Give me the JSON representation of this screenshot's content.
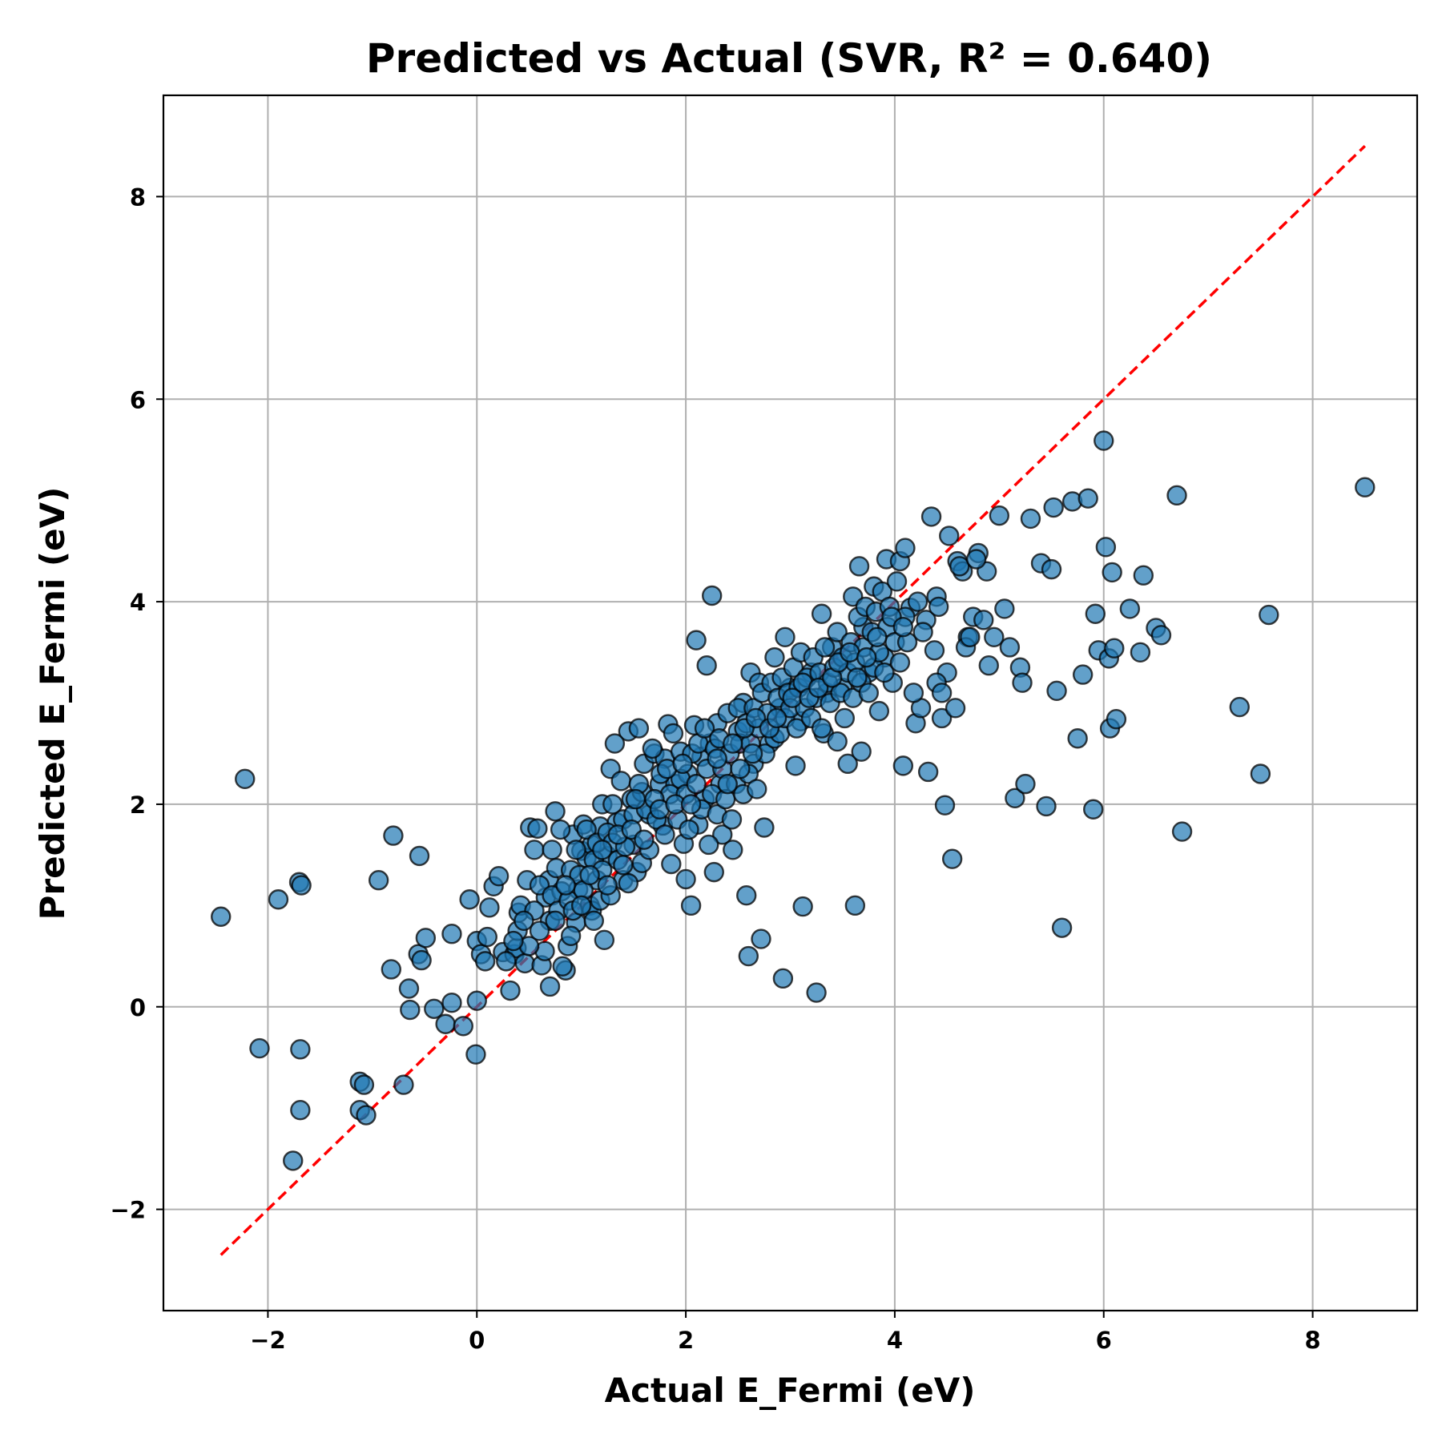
{
  "chart_data": {
    "type": "scatter",
    "title": "Predicted vs Actual (SVR, R² = 0.640)",
    "xlabel": "Actual E_Fermi (eV)",
    "ylabel": "Predicted E_Fermi (eV)",
    "xlim": [
      -3,
      9
    ],
    "ylim": [
      -3,
      9
    ],
    "xticks": [
      -2,
      0,
      2,
      4,
      6,
      8
    ],
    "yticks": [
      -2,
      0,
      2,
      4,
      6,
      8
    ],
    "xtick_labels": [
      "−2",
      "0",
      "2",
      "4",
      "6",
      "8"
    ],
    "ytick_labels": [
      "−2",
      "0",
      "2",
      "4",
      "6",
      "8"
    ],
    "grid": true,
    "reference_line": {
      "from": [
        -2.45,
        -2.45
      ],
      "to": [
        8.5,
        8.5
      ],
      "color": "#ff0000",
      "style": "dashed"
    },
    "marker_color": "#1f77b4",
    "points": [
      [
        -2.45,
        0.89
      ],
      [
        -2.22,
        2.25
      ],
      [
        -2.08,
        -0.41
      ],
      [
        -1.9,
        1.06
      ],
      [
        -1.7,
        1.23
      ],
      [
        -1.68,
        1.2
      ],
      [
        -1.69,
        -0.42
      ],
      [
        -1.69,
        -1.02
      ],
      [
        -1.76,
        -1.52
      ],
      [
        -1.12,
        -0.74
      ],
      [
        -1.08,
        -0.77
      ],
      [
        -1.12,
        -1.02
      ],
      [
        -1.06,
        -1.07
      ],
      [
        -0.94,
        1.25
      ],
      [
        -0.8,
        1.69
      ],
      [
        -0.82,
        0.37
      ],
      [
        -0.7,
        -0.77
      ],
      [
        -0.65,
        0.18
      ],
      [
        -0.64,
        -0.03
      ],
      [
        -0.55,
        1.49
      ],
      [
        -0.56,
        0.52
      ],
      [
        -0.53,
        0.46
      ],
      [
        -0.49,
        0.68
      ],
      [
        -0.41,
        -0.02
      ],
      [
        -0.3,
        -0.17
      ],
      [
        -0.24,
        0.04
      ],
      [
        -0.24,
        0.72
      ],
      [
        -0.13,
        -0.19
      ],
      [
        -0.07,
        1.06
      ],
      [
        0.0,
        0.06
      ],
      [
        -0.01,
        -0.47
      ],
      [
        0.0,
        0.65
      ],
      [
        0.04,
        0.52
      ],
      [
        0.08,
        0.45
      ],
      [
        0.1,
        0.69
      ],
      [
        0.12,
        0.98
      ],
      [
        0.16,
        1.19
      ],
      [
        0.21,
        1.29
      ],
      [
        0.25,
        0.54
      ],
      [
        0.32,
        0.16
      ],
      [
        0.36,
        0.52
      ],
      [
        0.38,
        0.58
      ],
      [
        0.39,
        0.75
      ],
      [
        0.4,
        0.93
      ],
      [
        0.42,
        1.0
      ],
      [
        0.46,
        0.43
      ],
      [
        0.48,
        1.25
      ],
      [
        0.51,
        1.77
      ],
      [
        0.55,
        1.55
      ],
      [
        0.58,
        1.76
      ],
      [
        0.62,
        0.41
      ],
      [
        0.66,
        1.08
      ],
      [
        0.69,
        1.25
      ],
      [
        0.7,
        0.85
      ],
      [
        0.72,
        1.55
      ],
      [
        0.75,
        1.93
      ],
      [
        0.76,
        1.37
      ],
      [
        0.81,
        1.14
      ],
      [
        0.85,
        0.36
      ],
      [
        0.87,
        0.6
      ],
      [
        0.9,
        1.35
      ],
      [
        0.92,
        1.7
      ],
      [
        0.95,
        0.83
      ],
      [
        0.97,
        1.16
      ],
      [
        1.0,
        1.54
      ],
      [
        1.02,
        1.8
      ],
      [
        1.05,
        1.47
      ],
      [
        1.08,
        1.0
      ],
      [
        1.1,
        1.6
      ],
      [
        1.15,
        1.25
      ],
      [
        1.18,
        1.78
      ],
      [
        1.2,
        2.0
      ],
      [
        1.22,
        0.66
      ],
      [
        1.25,
        1.49
      ],
      [
        1.28,
        2.35
      ],
      [
        1.3,
        2.0
      ],
      [
        1.34,
        1.82
      ],
      [
        1.38,
        2.23
      ],
      [
        1.4,
        1.25
      ],
      [
        1.45,
        2.72
      ],
      [
        1.48,
        2.05
      ],
      [
        1.5,
        1.6
      ],
      [
        1.53,
        1.33
      ],
      [
        1.55,
        2.75
      ],
      [
        1.58,
        2.12
      ],
      [
        1.6,
        2.4
      ],
      [
        1.65,
        1.9
      ],
      [
        1.7,
        2.5
      ],
      [
        1.75,
        2.2
      ],
      [
        1.78,
        1.79
      ],
      [
        1.8,
        2.45
      ],
      [
        1.83,
        2.79
      ],
      [
        1.86,
        1.41
      ],
      [
        1.9,
        2.2
      ],
      [
        1.95,
        2.52
      ],
      [
        1.98,
        1.61
      ],
      [
        2.0,
        1.26
      ],
      [
        2.02,
        2.3
      ],
      [
        2.05,
        1.0
      ],
      [
        2.08,
        2.78
      ],
      [
        2.1,
        3.62
      ],
      [
        2.12,
        1.8
      ],
      [
        2.15,
        2.47
      ],
      [
        2.18,
        2.05
      ],
      [
        2.2,
        3.37
      ],
      [
        2.23,
        2.6
      ],
      [
        2.25,
        4.06
      ],
      [
        2.27,
        1.33
      ],
      [
        2.3,
        2.8
      ],
      [
        2.33,
        2.2
      ],
      [
        2.35,
        1.7
      ],
      [
        2.4,
        2.9
      ],
      [
        2.45,
        1.55
      ],
      [
        2.5,
        2.72
      ],
      [
        2.55,
        3.0
      ],
      [
        2.58,
        1.1
      ],
      [
        2.6,
        0.5
      ],
      [
        2.62,
        3.3
      ],
      [
        2.65,
        2.4
      ],
      [
        2.7,
        3.2
      ],
      [
        2.72,
        0.67
      ],
      [
        2.75,
        1.77
      ],
      [
        2.8,
        2.6
      ],
      [
        2.85,
        3.45
      ],
      [
        2.9,
        2.95
      ],
      [
        2.93,
        0.28
      ],
      [
        2.95,
        3.65
      ],
      [
        3.0,
        3.15
      ],
      [
        3.05,
        2.38
      ],
      [
        3.1,
        2.82
      ],
      [
        3.12,
        0.99
      ],
      [
        3.2,
        3.3
      ],
      [
        3.25,
        0.14
      ],
      [
        3.3,
        3.88
      ],
      [
        3.32,
        2.7
      ],
      [
        3.35,
        3.1
      ],
      [
        3.4,
        3.55
      ],
      [
        3.45,
        2.62
      ],
      [
        3.5,
        3.15
      ],
      [
        3.55,
        2.4
      ],
      [
        3.6,
        4.05
      ],
      [
        3.62,
        1.0
      ],
      [
        3.66,
        4.35
      ],
      [
        3.68,
        2.52
      ],
      [
        3.7,
        3.75
      ],
      [
        3.75,
        3.3
      ],
      [
        3.8,
        4.15
      ],
      [
        3.85,
        2.92
      ],
      [
        3.9,
        3.45
      ],
      [
        3.92,
        4.42
      ],
      [
        3.98,
        3.2
      ],
      [
        4.05,
        4.4
      ],
      [
        4.08,
        2.38
      ],
      [
        4.1,
        4.53
      ],
      [
        4.15,
        3.94
      ],
      [
        4.2,
        2.8
      ],
      [
        4.25,
        2.95
      ],
      [
        4.3,
        3.82
      ],
      [
        4.32,
        2.32
      ],
      [
        4.35,
        4.84
      ],
      [
        4.38,
        3.52
      ],
      [
        4.4,
        4.05
      ],
      [
        4.45,
        2.85
      ],
      [
        4.48,
        1.99
      ],
      [
        4.5,
        3.3
      ],
      [
        4.52,
        4.65
      ],
      [
        4.55,
        1.46
      ],
      [
        4.6,
        4.4
      ],
      [
        4.65,
        4.3
      ],
      [
        4.7,
        3.65
      ],
      [
        4.75,
        3.85
      ],
      [
        4.8,
        4.48
      ],
      [
        4.85,
        3.82
      ],
      [
        4.88,
        4.3
      ],
      [
        4.9,
        3.37
      ],
      [
        4.95,
        3.65
      ],
      [
        5.0,
        4.85
      ],
      [
        5.05,
        3.93
      ],
      [
        5.1,
        3.55
      ],
      [
        5.15,
        2.06
      ],
      [
        5.2,
        3.35
      ],
      [
        5.22,
        3.2
      ],
      [
        5.25,
        2.2
      ],
      [
        5.3,
        4.82
      ],
      [
        5.4,
        4.38
      ],
      [
        5.45,
        1.98
      ],
      [
        5.5,
        4.32
      ],
      [
        5.52,
        4.93
      ],
      [
        5.55,
        3.12
      ],
      [
        5.6,
        0.78
      ],
      [
        5.7,
        4.99
      ],
      [
        5.75,
        2.65
      ],
      [
        5.8,
        3.28
      ],
      [
        5.85,
        5.02
      ],
      [
        5.9,
        1.95
      ],
      [
        5.92,
        3.88
      ],
      [
        5.95,
        3.52
      ],
      [
        6.0,
        5.59
      ],
      [
        6.02,
        4.54
      ],
      [
        6.05,
        3.44
      ],
      [
        6.06,
        2.75
      ],
      [
        6.08,
        4.29
      ],
      [
        6.1,
        3.54
      ],
      [
        6.12,
        2.84
      ],
      [
        6.25,
        3.93
      ],
      [
        6.35,
        3.5
      ],
      [
        6.38,
        4.26
      ],
      [
        6.5,
        3.74
      ],
      [
        6.55,
        3.67
      ],
      [
        6.7,
        5.05
      ],
      [
        6.75,
        1.73
      ],
      [
        7.3,
        2.96
      ],
      [
        7.5,
        2.3
      ],
      [
        7.58,
        3.87
      ],
      [
        8.5,
        5.13
      ],
      [
        0.55,
        0.95
      ],
      [
        0.6,
        1.2
      ],
      [
        0.65,
        0.55
      ],
      [
        0.7,
        0.2
      ],
      [
        0.72,
        1.1
      ],
      [
        0.78,
        0.95
      ],
      [
        0.8,
        1.75
      ],
      [
        0.82,
        0.4
      ],
      [
        0.88,
        1.05
      ],
      [
        0.92,
        0.95
      ],
      [
        0.95,
        1.55
      ],
      [
        0.98,
        1.3
      ],
      [
        1.02,
        1.15
      ],
      [
        1.05,
        1.75
      ],
      [
        1.1,
        0.95
      ],
      [
        1.12,
        1.45
      ],
      [
        1.15,
        1.62
      ],
      [
        1.18,
        1.05
      ],
      [
        1.2,
        1.35
      ],
      [
        1.25,
        1.72
      ],
      [
        1.28,
        1.1
      ],
      [
        1.3,
        1.62
      ],
      [
        1.32,
        2.6
      ],
      [
        1.35,
        1.45
      ],
      [
        1.4,
        1.85
      ],
      [
        1.42,
        1.58
      ],
      [
        1.45,
        1.22
      ],
      [
        1.5,
        1.9
      ],
      [
        1.55,
        2.2
      ],
      [
        1.58,
        1.42
      ],
      [
        1.62,
        1.95
      ],
      [
        1.65,
        1.55
      ],
      [
        1.68,
        2.55
      ],
      [
        1.72,
        1.85
      ],
      [
        1.76,
        2.3
      ],
      [
        1.8,
        1.7
      ],
      [
        1.85,
        2.1
      ],
      [
        1.88,
        2.7
      ],
      [
        1.92,
        1.85
      ],
      [
        1.95,
        2.25
      ],
      [
        2.0,
        2.1
      ],
      [
        2.03,
        1.75
      ],
      [
        2.06,
        2.5
      ],
      [
        2.1,
        2.2
      ],
      [
        2.12,
        2.6
      ],
      [
        2.15,
        1.95
      ],
      [
        2.18,
        2.75
      ],
      [
        2.2,
        2.35
      ],
      [
        2.22,
        1.6
      ],
      [
        2.25,
        2.1
      ],
      [
        2.28,
        2.55
      ],
      [
        2.3,
        1.9
      ],
      [
        2.32,
        2.65
      ],
      [
        2.35,
        2.35
      ],
      [
        2.38,
        2.05
      ],
      [
        2.42,
        2.5
      ],
      [
        2.44,
        1.85
      ],
      [
        2.48,
        2.2
      ],
      [
        2.5,
        2.95
      ],
      [
        2.52,
        2.6
      ],
      [
        2.55,
        2.1
      ],
      [
        2.58,
        2.8
      ],
      [
        2.6,
        2.3
      ],
      [
        2.62,
        2.6
      ],
      [
        2.65,
        2.95
      ],
      [
        2.68,
        2.15
      ],
      [
        2.7,
        2.75
      ],
      [
        2.73,
        3.1
      ],
      [
        2.76,
        2.5
      ],
      [
        2.78,
        2.9
      ],
      [
        2.82,
        3.2
      ],
      [
        2.85,
        2.65
      ],
      [
        2.88,
        3.05
      ],
      [
        2.9,
        2.7
      ],
      [
        2.92,
        3.25
      ],
      [
        2.95,
        2.85
      ],
      [
        2.98,
        3.1
      ],
      [
        3.0,
        2.95
      ],
      [
        3.03,
        3.35
      ],
      [
        3.06,
        2.75
      ],
      [
        3.08,
        3.15
      ],
      [
        3.1,
        3.5
      ],
      [
        3.14,
        2.95
      ],
      [
        3.16,
        3.25
      ],
      [
        3.2,
        2.85
      ],
      [
        3.22,
        3.45
      ],
      [
        3.25,
        3.05
      ],
      [
        3.28,
        3.3
      ],
      [
        3.3,
        2.75
      ],
      [
        3.33,
        3.55
      ],
      [
        3.36,
        3.2
      ],
      [
        3.38,
        3.0
      ],
      [
        3.42,
        3.35
      ],
      [
        3.45,
        3.7
      ],
      [
        3.48,
        3.1
      ],
      [
        3.5,
        3.45
      ],
      [
        3.52,
        2.85
      ],
      [
        3.55,
        3.3
      ],
      [
        3.58,
        3.6
      ],
      [
        3.6,
        3.05
      ],
      [
        3.62,
        3.4
      ],
      [
        3.65,
        3.85
      ],
      [
        3.68,
        3.2
      ],
      [
        3.7,
        3.55
      ],
      [
        3.72,
        3.95
      ],
      [
        3.75,
        3.1
      ],
      [
        3.78,
        3.7
      ],
      [
        3.8,
        3.35
      ],
      [
        3.82,
        3.9
      ],
      [
        3.85,
        3.5
      ],
      [
        3.88,
        4.1
      ],
      [
        3.9,
        3.3
      ],
      [
        3.93,
        3.75
      ],
      [
        3.95,
        3.95
      ],
      [
        4.0,
        3.6
      ],
      [
        4.02,
        4.2
      ],
      [
        4.05,
        3.4
      ],
      [
        4.1,
        3.85
      ],
      [
        4.12,
        3.6
      ],
      [
        4.18,
        3.1
      ],
      [
        4.22,
        4.0
      ],
      [
        4.27,
        3.7
      ],
      [
        4.4,
        3.2
      ],
      [
        4.42,
        3.95
      ],
      [
        4.45,
        3.1
      ],
      [
        4.58,
        2.95
      ],
      [
        4.62,
        4.35
      ],
      [
        4.68,
        3.55
      ],
      [
        4.72,
        3.65
      ],
      [
        4.78,
        4.42
      ],
      [
        0.5,
        0.6
      ],
      [
        0.45,
        0.85
      ],
      [
        0.35,
        0.65
      ],
      [
        0.28,
        0.45
      ],
      [
        0.6,
        0.75
      ],
      [
        0.75,
        0.85
      ],
      [
        0.85,
        1.2
      ],
      [
        0.9,
        0.7
      ],
      [
        1.0,
        1.0
      ],
      [
        1.08,
        1.3
      ],
      [
        1.12,
        0.85
      ],
      [
        1.2,
        1.55
      ],
      [
        1.25,
        1.2
      ],
      [
        1.35,
        1.7
      ],
      [
        1.4,
        1.4
      ],
      [
        1.48,
        1.75
      ],
      [
        1.52,
        2.05
      ],
      [
        1.6,
        1.65
      ],
      [
        1.7,
        2.05
      ],
      [
        1.75,
        1.95
      ],
      [
        1.82,
        2.35
      ],
      [
        1.9,
        2.0
      ],
      [
        1.97,
        2.4
      ],
      [
        2.05,
        2.0
      ],
      [
        2.3,
        2.45
      ],
      [
        2.4,
        2.2
      ],
      [
        2.45,
        2.6
      ],
      [
        2.52,
        2.35
      ],
      [
        2.56,
        2.75
      ],
      [
        2.64,
        2.5
      ],
      [
        2.67,
        2.85
      ],
      [
        2.8,
        2.75
      ],
      [
        2.87,
        2.85
      ],
      [
        3.02,
        3.05
      ],
      [
        3.12,
        3.2
      ],
      [
        3.18,
        3.05
      ],
      [
        3.27,
        3.15
      ],
      [
        3.4,
        3.25
      ],
      [
        3.46,
        3.4
      ],
      [
        3.57,
        3.5
      ],
      [
        3.64,
        3.25
      ],
      [
        3.73,
        3.45
      ],
      [
        3.83,
        3.65
      ],
      [
        3.97,
        3.85
      ],
      [
        4.08,
        3.75
      ]
    ]
  }
}
